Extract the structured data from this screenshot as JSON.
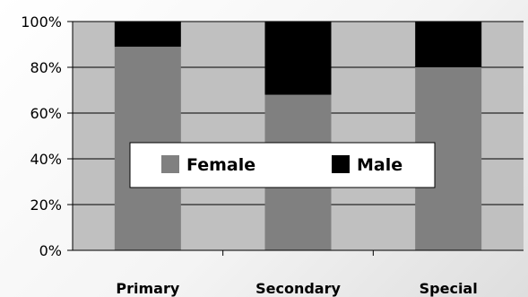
{
  "chart_data": {
    "type": "bar",
    "stacked": true,
    "normalized_percent": true,
    "categories": [
      "Primary",
      "Secondary",
      "Special"
    ],
    "series": [
      {
        "name": "Female",
        "values": [
          89,
          68,
          80
        ],
        "color": "#808080"
      },
      {
        "name": "Male",
        "values": [
          11,
          32,
          20
        ],
        "color": "#000000"
      }
    ],
    "ylim": [
      0,
      100
    ],
    "yticks": [
      "0%",
      "20%",
      "40%",
      "60%",
      "80%",
      "100%"
    ],
    "grid": true,
    "legend_position": "center",
    "plot_background": "#c0c0c0",
    "title": "",
    "xlabel": "",
    "ylabel": ""
  }
}
